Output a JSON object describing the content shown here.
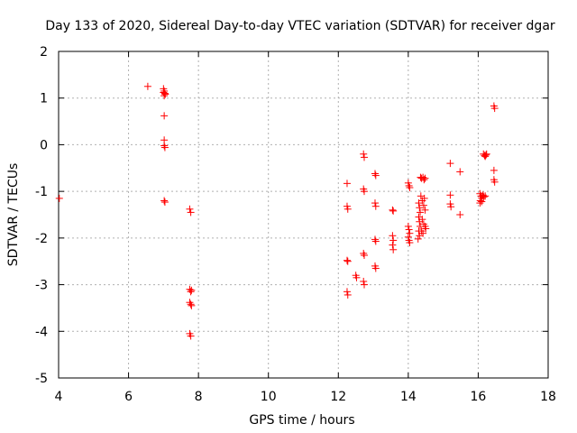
{
  "chart_data": {
    "type": "scatter",
    "title": "Day 133 of 2020, Sidereal Day-to-day VTEC variation (SDTVAR) for receiver dgar",
    "xlabel": "GPS time / hours",
    "ylabel": "SDTVAR / TECUs",
    "xlim": [
      4,
      18
    ],
    "ylim": [
      -5,
      2
    ],
    "xticks": [
      4,
      6,
      8,
      10,
      12,
      14,
      16,
      18
    ],
    "yticks": [
      -5,
      -4,
      -3,
      -2,
      -1,
      0,
      1,
      2
    ],
    "xtick_labels": [
      "4",
      "6",
      "8",
      "10",
      "12",
      "14",
      "16",
      "18"
    ],
    "ytick_labels": [
      "-5",
      "-4",
      "-3",
      "-2",
      "-1",
      "0",
      "1",
      "2"
    ],
    "grid": true,
    "marker": "+",
    "color": "#ff0000",
    "series": [
      {
        "name": "dgar",
        "points": [
          [
            4.02,
            -1.15
          ],
          [
            6.55,
            1.25
          ],
          [
            7.0,
            1.2
          ],
          [
            7.02,
            1.15
          ],
          [
            7.04,
            1.1
          ],
          [
            7.02,
            1.05
          ],
          [
            7.05,
            1.08
          ],
          [
            7.0,
            1.12
          ],
          [
            7.02,
            0.62
          ],
          [
            7.02,
            0.1
          ],
          [
            7.02,
            -0.02
          ],
          [
            7.04,
            -0.06
          ],
          [
            7.02,
            -1.2
          ],
          [
            7.04,
            -1.23
          ],
          [
            7.75,
            -1.38
          ],
          [
            7.78,
            -1.45
          ],
          [
            7.75,
            -3.1
          ],
          [
            7.78,
            -3.15
          ],
          [
            7.8,
            -3.12
          ],
          [
            7.75,
            -3.38
          ],
          [
            7.78,
            -3.42
          ],
          [
            7.8,
            -3.45
          ],
          [
            7.75,
            -4.05
          ],
          [
            7.78,
            -4.1
          ],
          [
            12.25,
            -0.83
          ],
          [
            12.25,
            -1.32
          ],
          [
            12.27,
            -1.38
          ],
          [
            12.25,
            -2.48
          ],
          [
            12.27,
            -2.5
          ],
          [
            12.25,
            -3.15
          ],
          [
            12.27,
            -3.22
          ],
          [
            12.5,
            -2.8
          ],
          [
            12.52,
            -2.85
          ],
          [
            12.72,
            -0.2
          ],
          [
            12.74,
            -0.27
          ],
          [
            12.72,
            -0.95
          ],
          [
            12.74,
            -1.0
          ],
          [
            12.72,
            -2.33
          ],
          [
            12.74,
            -2.37
          ],
          [
            12.72,
            -2.93
          ],
          [
            12.74,
            -3.0
          ],
          [
            13.05,
            -0.62
          ],
          [
            13.07,
            -0.66
          ],
          [
            13.05,
            -1.25
          ],
          [
            13.07,
            -1.32
          ],
          [
            13.05,
            -2.03
          ],
          [
            13.07,
            -2.07
          ],
          [
            13.05,
            -2.6
          ],
          [
            13.07,
            -2.65
          ],
          [
            13.55,
            -1.4
          ],
          [
            13.57,
            -1.42
          ],
          [
            13.55,
            -1.95
          ],
          [
            13.57,
            -2.05
          ],
          [
            13.55,
            -2.15
          ],
          [
            13.57,
            -2.25
          ],
          [
            14.0,
            -0.82
          ],
          [
            14.02,
            -0.88
          ],
          [
            14.04,
            -0.92
          ],
          [
            14.0,
            -1.75
          ],
          [
            14.02,
            -1.82
          ],
          [
            14.04,
            -1.9
          ],
          [
            14.0,
            -1.98
          ],
          [
            14.02,
            -2.05
          ],
          [
            14.04,
            -2.1
          ],
          [
            14.3,
            -1.25
          ],
          [
            14.32,
            -1.35
          ],
          [
            14.34,
            -1.45
          ],
          [
            14.3,
            -1.55
          ],
          [
            14.32,
            -1.65
          ],
          [
            14.34,
            -1.75
          ],
          [
            14.3,
            -1.85
          ],
          [
            14.32,
            -1.95
          ],
          [
            14.28,
            -2.02
          ],
          [
            14.35,
            -0.7
          ],
          [
            14.38,
            -0.72
          ],
          [
            14.42,
            -0.7
          ],
          [
            14.45,
            -0.75
          ],
          [
            14.48,
            -0.72
          ],
          [
            14.36,
            -1.1
          ],
          [
            14.4,
            -1.2
          ],
          [
            14.44,
            -1.3
          ],
          [
            14.46,
            -1.15
          ],
          [
            14.48,
            -1.4
          ],
          [
            14.4,
            -1.6
          ],
          [
            14.44,
            -1.7
          ],
          [
            14.48,
            -1.75
          ],
          [
            14.5,
            -1.8
          ],
          [
            14.38,
            -1.85
          ],
          [
            14.42,
            -1.9
          ],
          [
            15.2,
            -0.4
          ],
          [
            15.2,
            -1.08
          ],
          [
            15.2,
            -1.27
          ],
          [
            15.22,
            -1.33
          ],
          [
            15.48,
            -0.58
          ],
          [
            15.48,
            -1.5
          ],
          [
            16.05,
            -1.05
          ],
          [
            16.08,
            -1.1
          ],
          [
            16.1,
            -1.15
          ],
          [
            16.12,
            -1.1
          ],
          [
            16.14,
            -1.08
          ],
          [
            16.16,
            -1.12
          ],
          [
            16.06,
            -1.2
          ],
          [
            16.1,
            -1.22
          ],
          [
            16.2,
            -1.1
          ],
          [
            16.05,
            -1.25
          ],
          [
            16.15,
            -0.2
          ],
          [
            16.18,
            -0.23
          ],
          [
            16.2,
            -0.25
          ],
          [
            16.22,
            -0.22
          ],
          [
            16.24,
            -0.2
          ],
          [
            16.45,
            0.83
          ],
          [
            16.47,
            0.78
          ],
          [
            16.45,
            -0.55
          ],
          [
            16.45,
            -0.75
          ],
          [
            16.47,
            -0.8
          ]
        ]
      }
    ]
  }
}
